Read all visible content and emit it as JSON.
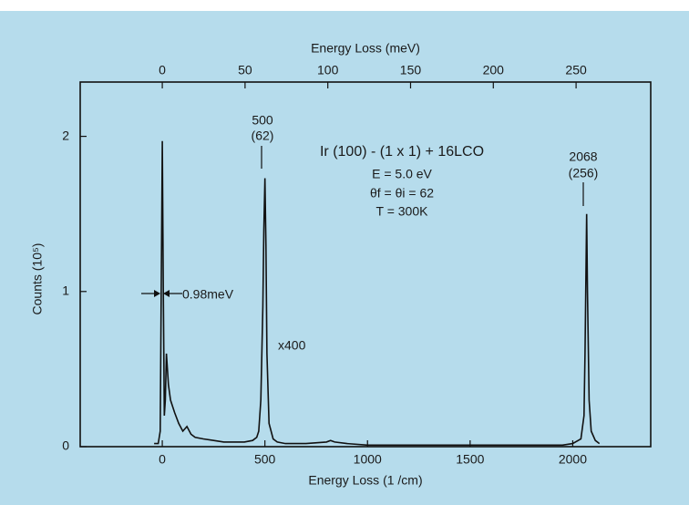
{
  "chart_data": {
    "type": "line",
    "x_label": "Energy Loss (1 /cm)",
    "x2_label": "Energy Loss (meV)",
    "y_label": "Counts (10⁵)",
    "xlim": [
      -400,
      2380
    ],
    "xticks": [
      0,
      500,
      1000,
      1500,
      2000
    ],
    "x2lim": [
      -49.6,
      295.1
    ],
    "x2ticks": [
      0,
      50,
      100,
      150,
      200,
      250
    ],
    "ylim": [
      0,
      2.35
    ],
    "yticks": [
      0,
      1,
      2
    ],
    "color": "#111111",
    "x": [
      -40,
      -20,
      -10,
      -5,
      0,
      5,
      10,
      15,
      20,
      25,
      30,
      40,
      60,
      80,
      100,
      120,
      140,
      160,
      200,
      250,
      300,
      350,
      400,
      440,
      460,
      470,
      480,
      490,
      495,
      500,
      505,
      510,
      520,
      540,
      560,
      600,
      700,
      800,
      820,
      840,
      900,
      1000,
      1200,
      1400,
      1600,
      1800,
      1950,
      2000,
      2040,
      2055,
      2060,
      2065,
      2068,
      2072,
      2080,
      2090,
      2110,
      2130
    ],
    "values": [
      0.02,
      0.02,
      0.1,
      1.0,
      1.97,
      1.0,
      0.2,
      0.3,
      0.6,
      0.5,
      0.4,
      0.3,
      0.22,
      0.15,
      0.1,
      0.13,
      0.08,
      0.06,
      0.05,
      0.04,
      0.03,
      0.03,
      0.03,
      0.04,
      0.06,
      0.1,
      0.3,
      0.9,
      1.4,
      1.73,
      1.3,
      0.6,
      0.15,
      0.05,
      0.03,
      0.02,
      0.02,
      0.03,
      0.04,
      0.03,
      0.02,
      0.01,
      0.01,
      0.01,
      0.01,
      0.01,
      0.01,
      0.02,
      0.05,
      0.2,
      0.6,
      1.2,
      1.5,
      1.0,
      0.3,
      0.1,
      0.04,
      0.02
    ],
    "annotations": [
      "500",
      "(62)",
      "Ir (100) - (1 x 1) + 16LCO",
      "E = 5.0 eV",
      "θf = θi = 62",
      "T = 300K",
      "2068",
      "(256)",
      "0.98meV",
      "x400"
    ]
  }
}
